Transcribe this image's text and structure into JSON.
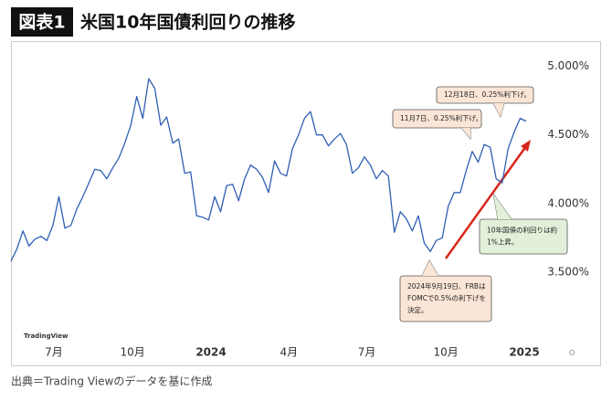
{
  "header": {
    "badge": "図表1",
    "title": "米国10年国債利回りの推移"
  },
  "chart_data": {
    "type": "line",
    "series": [
      {
        "color": "#2f5fb3",
        "values": [
          3.58,
          3.67,
          3.8,
          3.69,
          3.74,
          3.76,
          3.73,
          3.84,
          4.05,
          3.82,
          3.84,
          3.96,
          4.05,
          4.15,
          4.25,
          4.24,
          4.18,
          4.26,
          4.33,
          4.44,
          4.57,
          4.78,
          4.62,
          4.91,
          4.84,
          4.57,
          4.63,
          4.44,
          4.47,
          4.22,
          4.23,
          3.91,
          3.9,
          3.88,
          4.05,
          3.94,
          4.13,
          4.14,
          4.02,
          4.18,
          4.28,
          4.25,
          4.19,
          4.08,
          4.31,
          4.22,
          4.2,
          4.4,
          4.5,
          4.62,
          4.67,
          4.5,
          4.5,
          4.42,
          4.47,
          4.51,
          4.43,
          4.22,
          4.26,
          4.34,
          4.28,
          4.18,
          4.24,
          4.2,
          3.79,
          3.94,
          3.89,
          3.8,
          3.91,
          3.71,
          3.65,
          3.73,
          3.75,
          3.98,
          4.08,
          4.08,
          4.24,
          4.38,
          4.3,
          4.43,
          4.41,
          4.18,
          4.15,
          4.4,
          4.52,
          4.62,
          4.6
        ]
      }
    ],
    "xlim": [
      0,
      86
    ],
    "xticks": [
      {
        "value": 7.15,
        "label": "7月"
      },
      {
        "value": 20.3,
        "label": "10月"
      },
      {
        "value": 33.4,
        "label": "2024"
      },
      {
        "value": 46.4,
        "label": "4月"
      },
      {
        "value": 59.4,
        "label": "7月"
      },
      {
        "value": 72.6,
        "label": "10月"
      },
      {
        "value": 85.7,
        "label": "2025"
      }
    ],
    "ylim": [
      3.02,
      5.15
    ],
    "yticks": [
      {
        "value": 3.5,
        "label": "3.500%"
      },
      {
        "value": 4,
        "label": "4.000%"
      },
      {
        "value": 4.5,
        "label": "4.500%"
      },
      {
        "value": 5,
        "label": "5.000%"
      }
    ],
    "grid": false,
    "watermark": "TradingView",
    "annotations": [
      {
        "lines": [
          "12月18日、0.25%利下げ。"
        ]
      },
      {
        "lines": [
          "11月7日、0.25%利下げ。"
        ]
      },
      {
        "lines": [
          "10年国債の利回りは約",
          "1%上昇。"
        ]
      },
      {
        "lines": [
          "2024年9月19日、FRBは",
          "FOMCで0.5%の利下げを",
          "決定。"
        ]
      }
    ]
  },
  "footer": {
    "source": "出典＝Trading Viewのデータを基に作成"
  }
}
